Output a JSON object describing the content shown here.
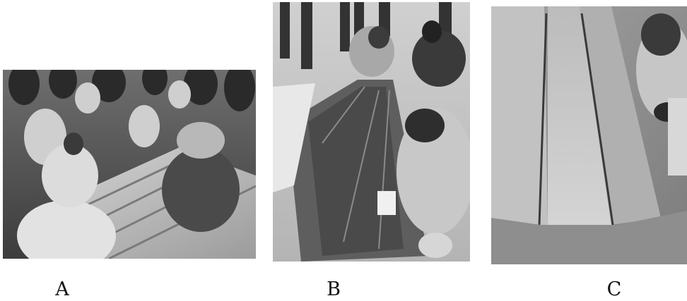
{
  "panels": [
    {
      "id": "A",
      "label": "A"
    },
    {
      "id": "B",
      "label": "B"
    },
    {
      "id": "C",
      "label": "C"
    }
  ],
  "style": {
    "tone": "grayscale"
  }
}
